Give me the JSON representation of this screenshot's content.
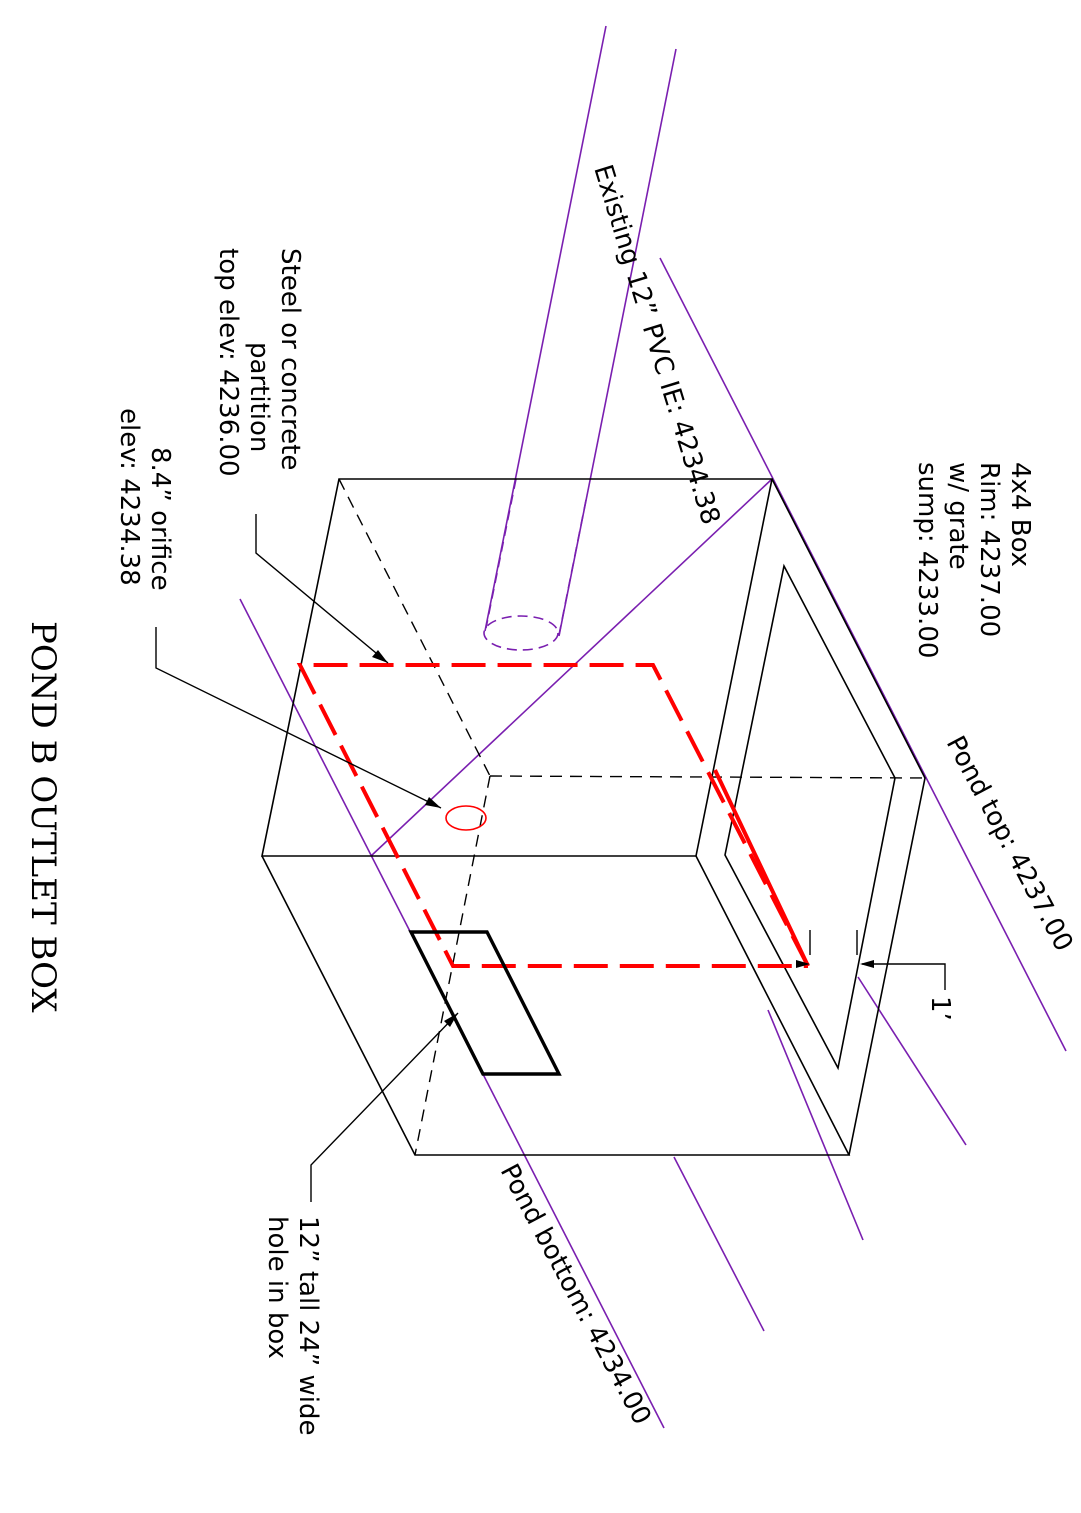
{
  "title": "POND B OUTLET BOX",
  "colors": {
    "outline": "#000000",
    "partition": "#ff0000",
    "pond_lines": "#7a1fb0"
  },
  "labels": {
    "pipe": "Existing 12” PVC IE: 4234.38",
    "box": [
      "4x4 Box",
      "Rim: 4237.00",
      "w/ grate",
      "sump: 4233.00"
    ],
    "pond_top": "Pond top: 4237.00",
    "partition": [
      "Steel or concrete",
      "partition",
      "top elev: 4236.00"
    ],
    "orifice": [
      "8.4” orifice",
      "elev: 4234.38"
    ],
    "dimension": "1’",
    "hole": [
      "12” tall 24” wide",
      "hole in box"
    ],
    "pond_bottom": "Pond bottom: 4234.00"
  }
}
